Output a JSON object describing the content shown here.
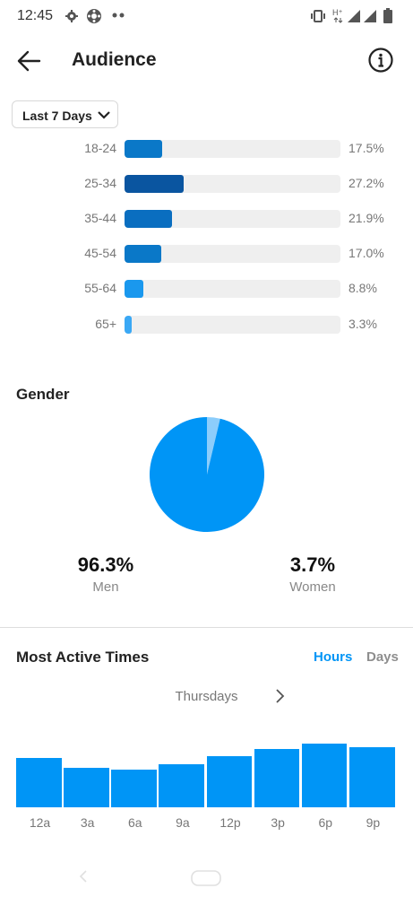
{
  "status_bar": {
    "time": "12:45"
  },
  "header": {
    "title": "Audience"
  },
  "range_selector": {
    "label": "Last 7 Days"
  },
  "age": {
    "groups": [
      {
        "label": "18-24",
        "percent": "17.5%",
        "value": 17.5,
        "color": "#0a78c8"
      },
      {
        "label": "25-34",
        "percent": "27.2%",
        "value": 27.2,
        "color": "#0a55a0"
      },
      {
        "label": "35-44",
        "percent": "21.9%",
        "value": 21.9,
        "color": "#0a6ec0"
      },
      {
        "label": "45-54",
        "percent": "17.0%",
        "value": 17.0,
        "color": "#0a78c8"
      },
      {
        "label": "55-64",
        "percent": "8.8%",
        "value": 8.8,
        "color": "#1a98ee"
      },
      {
        "label": "65+",
        "percent": "3.3%",
        "value": 3.3,
        "color": "#3aa8f5"
      }
    ]
  },
  "gender": {
    "title": "Gender",
    "men": {
      "value": "96.3%",
      "label": "Men",
      "percent": 96.3,
      "color": "#0095f6"
    },
    "women": {
      "value": "3.7%",
      "label": "Women",
      "percent": 3.7,
      "color": "#8ccdfb"
    }
  },
  "active_times": {
    "title": "Most Active Times",
    "tabs": [
      {
        "label": "Hours",
        "active": true,
        "color": "#0095f6"
      },
      {
        "label": "Days",
        "active": false,
        "color": "#8e8e8e"
      }
    ],
    "day": "Thursdays",
    "bar_color": "#0095f6"
  },
  "chart_data": {
    "type": "bar",
    "categories": [
      "12a",
      "3a",
      "6a",
      "9a",
      "12p",
      "3p",
      "6p",
      "9p"
    ],
    "values": [
      61,
      49,
      47,
      53,
      63,
      72,
      79,
      74
    ],
    "ylim": [
      0,
      100
    ]
  }
}
